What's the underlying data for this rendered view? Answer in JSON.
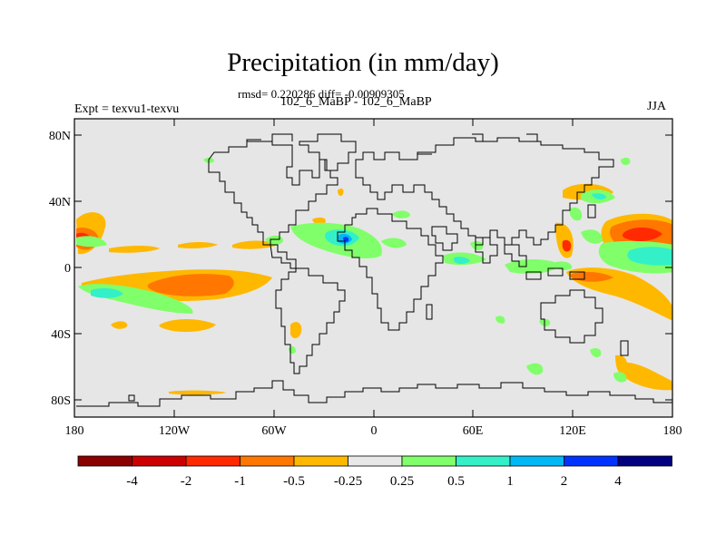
{
  "title": "Precipitation (in mm/day)",
  "stats": "rmsd= 0.220286 diff= -0.00909305",
  "subtitle": "102_6_MaBP - 102_6_MaBP",
  "left_label": "Expt = texvu1-texvu",
  "season": "JJA",
  "y_ticks": [
    "80N",
    "40N",
    "0",
    "40S",
    "80S"
  ],
  "x_ticks": [
    "180",
    "120W",
    "60W",
    "0",
    "60E",
    "120E",
    "180"
  ],
  "colorbar": {
    "colors": [
      "#8b0000",
      "#cc0000",
      "#ff2a00",
      "#ff7700",
      "#ffb800",
      "#e8e8e8",
      "#80ff6a",
      "#33f0c8",
      "#00b8f4",
      "#0033ff",
      "#000080"
    ],
    "labels": [
      "-4",
      "-2",
      "-1",
      "-0.5",
      "-0.25",
      "0.25",
      "0.5",
      "1",
      "2",
      "4"
    ]
  },
  "chart_data": {
    "type": "heatmap",
    "variable": "Precipitation difference (mm/day)",
    "longitude_range": [
      -180,
      180
    ],
    "latitude_range": [
      -90,
      90
    ],
    "levels": [
      -4,
      -2,
      -1,
      -0.5,
      -0.25,
      0.25,
      0.5,
      1,
      2,
      4
    ],
    "anomalies": [
      {
        "lon": -173,
        "lat": 20,
        "value": -1.5
      },
      {
        "lon": -174,
        "lat": 29,
        "value": -0.4
      },
      {
        "lon": -135,
        "lat": 13,
        "value": -0.4
      },
      {
        "lon": -110,
        "lat": 15,
        "value": -0.3
      },
      {
        "lon": -60,
        "lat": 12,
        "value": -0.3
      },
      {
        "lon": -120,
        "lat": -10,
        "value": -1.2
      },
      {
        "lon": -165,
        "lat": -15,
        "value": 0.8
      },
      {
        "lon": -140,
        "lat": -20,
        "value": 0.6
      },
      {
        "lon": -110,
        "lat": -33,
        "value": -0.3
      },
      {
        "lon": -150,
        "lat": -37,
        "value": -0.3
      },
      {
        "lon": -20,
        "lat": 20,
        "value": 1.2
      },
      {
        "lon": -13,
        "lat": 15,
        "value": 2.5
      },
      {
        "lon": -50,
        "lat": 20,
        "value": 0.4
      },
      {
        "lon": 50,
        "lat": 5,
        "value": 0.6
      },
      {
        "lon": 60,
        "lat": 12,
        "value": 0.4
      },
      {
        "lon": 40,
        "lat": -5,
        "value": 0.3
      },
      {
        "lon": 18,
        "lat": -5,
        "value": 0.4
      },
      {
        "lon": 80,
        "lat": 0,
        "value": 0.4
      },
      {
        "lon": 130,
        "lat": 40,
        "value": 0.6
      },
      {
        "lon": 120,
        "lat": 13,
        "value": -1.5
      },
      {
        "lon": 163,
        "lat": 20,
        "value": -2.0
      },
      {
        "lon": 165,
        "lat": 5,
        "value": 0.8
      },
      {
        "lon": 150,
        "lat": -15,
        "value": -0.6
      },
      {
        "lon": 160,
        "lat": -22,
        "value": -0.4
      },
      {
        "lon": 150,
        "lat": -62,
        "value": -0.4
      },
      {
        "lon": 160,
        "lat": -70,
        "value": -0.4
      },
      {
        "lon": 125,
        "lat": -57,
        "value": 0.3
      },
      {
        "lon": 100,
        "lat": -33,
        "value": 0.3
      },
      {
        "lon": 60,
        "lat": -45,
        "value": 0.3
      },
      {
        "lon": -60,
        "lat": -40,
        "value": -0.3
      },
      {
        "lon": -110,
        "lat": -75,
        "value": -0.3
      }
    ]
  }
}
